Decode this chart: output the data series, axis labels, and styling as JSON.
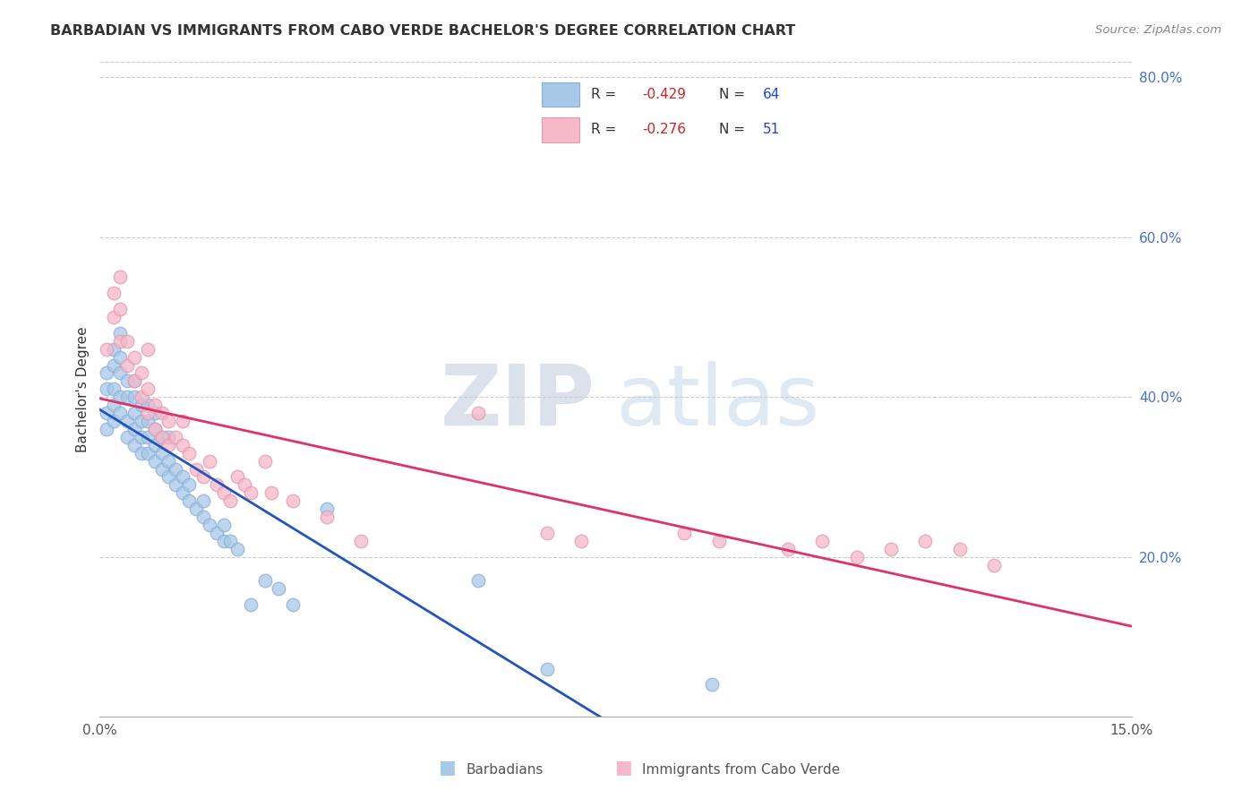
{
  "title": "BARBADIAN VS IMMIGRANTS FROM CABO VERDE BACHELOR'S DEGREE CORRELATION CHART",
  "source": "Source: ZipAtlas.com",
  "ylabel": "Bachelor's Degree",
  "xlim": [
    0.0,
    0.15
  ],
  "ylim": [
    0.0,
    0.82
  ],
  "blue_R": -0.429,
  "blue_N": 64,
  "pink_R": -0.276,
  "pink_N": 51,
  "blue_color": "#a8c8e8",
  "pink_color": "#f4b8c8",
  "line_blue": "#2255bb",
  "line_pink": "#dd3366",
  "r_text_blue": "#cc2222",
  "r_text_pink": "#cc2222",
  "n_text_blue": "#2244cc",
  "n_text_pink": "#2244cc",
  "right_axis_color": "#4472c4",
  "watermark": "ZIPatlas",
  "legend_blue_label": "Barbadians",
  "legend_pink_label": "Immigrants from Cabo Verde",
  "blue_x": [
    0.001,
    0.001,
    0.001,
    0.001,
    0.002,
    0.002,
    0.002,
    0.002,
    0.002,
    0.003,
    0.003,
    0.003,
    0.003,
    0.003,
    0.004,
    0.004,
    0.004,
    0.004,
    0.005,
    0.005,
    0.005,
    0.005,
    0.005,
    0.006,
    0.006,
    0.006,
    0.006,
    0.007,
    0.007,
    0.007,
    0.007,
    0.008,
    0.008,
    0.008,
    0.008,
    0.009,
    0.009,
    0.009,
    0.01,
    0.01,
    0.01,
    0.011,
    0.011,
    0.012,
    0.012,
    0.013,
    0.013,
    0.014,
    0.015,
    0.015,
    0.016,
    0.017,
    0.018,
    0.018,
    0.019,
    0.02,
    0.022,
    0.024,
    0.026,
    0.028,
    0.033,
    0.055,
    0.065,
    0.089
  ],
  "blue_y": [
    0.36,
    0.38,
    0.41,
    0.43,
    0.37,
    0.39,
    0.41,
    0.44,
    0.46,
    0.38,
    0.4,
    0.43,
    0.45,
    0.48,
    0.35,
    0.37,
    0.4,
    0.42,
    0.34,
    0.36,
    0.38,
    0.4,
    0.42,
    0.33,
    0.35,
    0.37,
    0.39,
    0.33,
    0.35,
    0.37,
    0.39,
    0.32,
    0.34,
    0.36,
    0.38,
    0.31,
    0.33,
    0.35,
    0.3,
    0.32,
    0.35,
    0.29,
    0.31,
    0.28,
    0.3,
    0.27,
    0.29,
    0.26,
    0.25,
    0.27,
    0.24,
    0.23,
    0.22,
    0.24,
    0.22,
    0.21,
    0.14,
    0.17,
    0.16,
    0.14,
    0.26,
    0.17,
    0.06,
    0.04
  ],
  "pink_x": [
    0.001,
    0.002,
    0.002,
    0.003,
    0.003,
    0.003,
    0.004,
    0.004,
    0.005,
    0.005,
    0.006,
    0.006,
    0.007,
    0.007,
    0.007,
    0.008,
    0.008,
    0.009,
    0.009,
    0.01,
    0.01,
    0.011,
    0.012,
    0.012,
    0.013,
    0.014,
    0.015,
    0.016,
    0.017,
    0.018,
    0.019,
    0.02,
    0.021,
    0.022,
    0.024,
    0.025,
    0.028,
    0.033,
    0.038,
    0.055,
    0.065,
    0.07,
    0.085,
    0.09,
    0.1,
    0.105,
    0.11,
    0.115,
    0.12,
    0.125,
    0.13
  ],
  "pink_y": [
    0.46,
    0.5,
    0.53,
    0.47,
    0.51,
    0.55,
    0.44,
    0.47,
    0.42,
    0.45,
    0.4,
    0.43,
    0.38,
    0.41,
    0.46,
    0.36,
    0.39,
    0.35,
    0.38,
    0.34,
    0.37,
    0.35,
    0.34,
    0.37,
    0.33,
    0.31,
    0.3,
    0.32,
    0.29,
    0.28,
    0.27,
    0.3,
    0.29,
    0.28,
    0.32,
    0.28,
    0.27,
    0.25,
    0.22,
    0.38,
    0.23,
    0.22,
    0.23,
    0.22,
    0.21,
    0.22,
    0.2,
    0.21,
    0.22,
    0.21,
    0.19
  ]
}
